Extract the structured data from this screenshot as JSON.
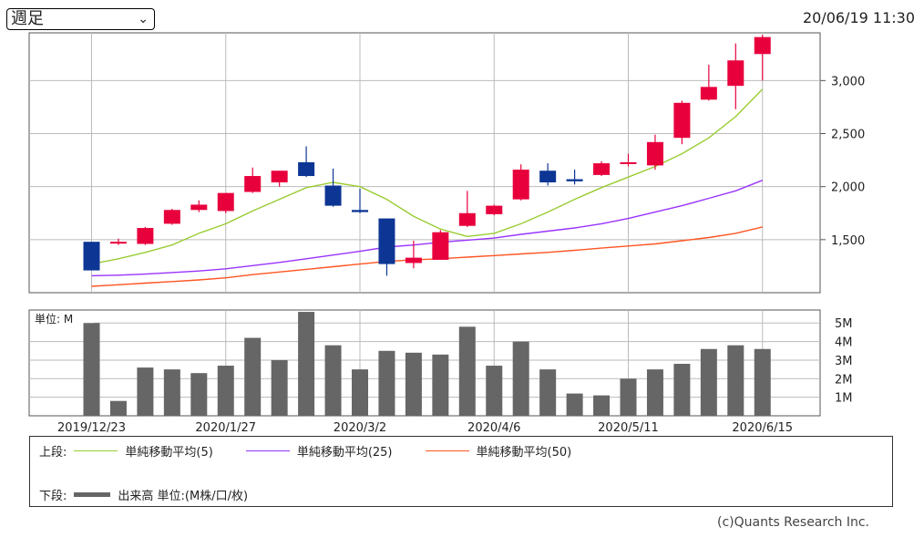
{
  "period_select": {
    "value": "週足"
  },
  "timestamp": "20/06/19 11:30",
  "colors": {
    "up": "#e8003d",
    "down": "#0d3694",
    "ma5": "#99cc33",
    "ma25": "#9933ff",
    "ma50": "#ff5522",
    "volume": "#666666",
    "grid": "#bbbbbb"
  },
  "legend": {
    "upper_label": "上段:",
    "lower_label": "下段:",
    "ma5": "単純移動平均(5)",
    "ma25": "単純移動平均(25)",
    "ma50": "単純移動平均(50)",
    "volume": "出来高 単位:(M株/口/枚)"
  },
  "copyright": "(c)Quants Research Inc.",
  "chart_data": {
    "type": "candlestick",
    "price_yticks": [
      1500,
      2000,
      2500,
      3000
    ],
    "price_ytick_labels": [
      "1,500",
      "2,000",
      "2,500",
      "3,000"
    ],
    "price_ylim": [
      1000,
      3450
    ],
    "volume_unit": "単位: M",
    "volume_yticks": [
      1,
      2,
      3,
      4,
      5
    ],
    "volume_ytick_labels": [
      "1M",
      "2M",
      "3M",
      "4M",
      "5M"
    ],
    "volume_ylim": [
      0,
      5.7
    ],
    "x_tick_labels": [
      {
        "index": 0,
        "label": "2019/12/23"
      },
      {
        "index": 5,
        "label": "2020/1/27"
      },
      {
        "index": 10,
        "label": "2020/3/2"
      },
      {
        "index": 15,
        "label": "2020/4/6"
      },
      {
        "index": 20,
        "label": "2020/5/11"
      },
      {
        "index": 25,
        "label": "2020/6/15"
      }
    ],
    "candles": [
      {
        "open": 1480,
        "close": 1210,
        "high": 1480,
        "low": 1210
      },
      {
        "open": 1470,
        "close": 1480,
        "high": 1510,
        "low": 1450
      },
      {
        "open": 1460,
        "close": 1610,
        "high": 1620,
        "low": 1450
      },
      {
        "open": 1650,
        "close": 1780,
        "high": 1790,
        "low": 1640
      },
      {
        "open": 1780,
        "close": 1830,
        "high": 1870,
        "low": 1760
      },
      {
        "open": 1770,
        "close": 1940,
        "high": 1940,
        "low": 1750
      },
      {
        "open": 1950,
        "close": 2100,
        "high": 2180,
        "low": 1940
      },
      {
        "open": 2040,
        "close": 2150,
        "high": 2150,
        "low": 2000
      },
      {
        "open": 2230,
        "close": 2100,
        "high": 2380,
        "low": 2090
      },
      {
        "open": 2010,
        "close": 1820,
        "high": 2170,
        "low": 1810
      },
      {
        "open": 1780,
        "close": 1760,
        "high": 1980,
        "low": 1750
      },
      {
        "open": 1700,
        "close": 1270,
        "high": 1700,
        "low": 1160
      },
      {
        "open": 1280,
        "close": 1330,
        "high": 1490,
        "low": 1230
      },
      {
        "open": 1310,
        "close": 1570,
        "high": 1590,
        "low": 1310
      },
      {
        "open": 1630,
        "close": 1750,
        "high": 1960,
        "low": 1620
      },
      {
        "open": 1740,
        "close": 1820,
        "high": 1830,
        "low": 1730
      },
      {
        "open": 1880,
        "close": 2160,
        "high": 2210,
        "low": 1870
      },
      {
        "open": 2150,
        "close": 2040,
        "high": 2220,
        "low": 2010
      },
      {
        "open": 2070,
        "close": 2050,
        "high": 2160,
        "low": 2020
      },
      {
        "open": 2110,
        "close": 2220,
        "high": 2240,
        "low": 2100
      },
      {
        "open": 2220,
        "close": 2230,
        "high": 2310,
        "low": 2190
      },
      {
        "open": 2200,
        "close": 2420,
        "high": 2490,
        "low": 2160
      },
      {
        "open": 2460,
        "close": 2790,
        "high": 2810,
        "low": 2400
      },
      {
        "open": 2820,
        "close": 2940,
        "high": 3150,
        "low": 2810
      },
      {
        "open": 2950,
        "close": 3190,
        "high": 3350,
        "low": 2730
      },
      {
        "open": 3250,
        "close": 3410,
        "high": 3430,
        "low": 3000
      }
    ],
    "ma5": [
      1270,
      1320,
      1380,
      1450,
      1560,
      1650,
      1770,
      1880,
      1990,
      2040,
      2000,
      1880,
      1720,
      1600,
      1530,
      1560,
      1650,
      1760,
      1880,
      1990,
      2090,
      2190,
      2310,
      2460,
      2660,
      2920
    ],
    "ma25": [
      1160,
      1165,
      1175,
      1190,
      1205,
      1225,
      1255,
      1285,
      1320,
      1355,
      1390,
      1430,
      1450,
      1475,
      1495,
      1515,
      1550,
      1580,
      1610,
      1650,
      1700,
      1760,
      1820,
      1890,
      1960,
      2060
    ],
    "ma50": [
      1060,
      1075,
      1090,
      1105,
      1120,
      1140,
      1170,
      1195,
      1220,
      1245,
      1270,
      1295,
      1310,
      1320,
      1335,
      1350,
      1365,
      1380,
      1400,
      1420,
      1440,
      1460,
      1490,
      1520,
      1560,
      1620
    ],
    "volume": [
      5.0,
      0.8,
      2.6,
      2.5,
      2.3,
      2.7,
      4.2,
      3.0,
      5.6,
      3.8,
      2.5,
      3.5,
      3.4,
      3.3,
      4.8,
      2.7,
      4.0,
      2.5,
      1.2,
      1.1,
      2.0,
      2.5,
      2.8,
      3.6,
      3.8,
      3.6
    ]
  }
}
